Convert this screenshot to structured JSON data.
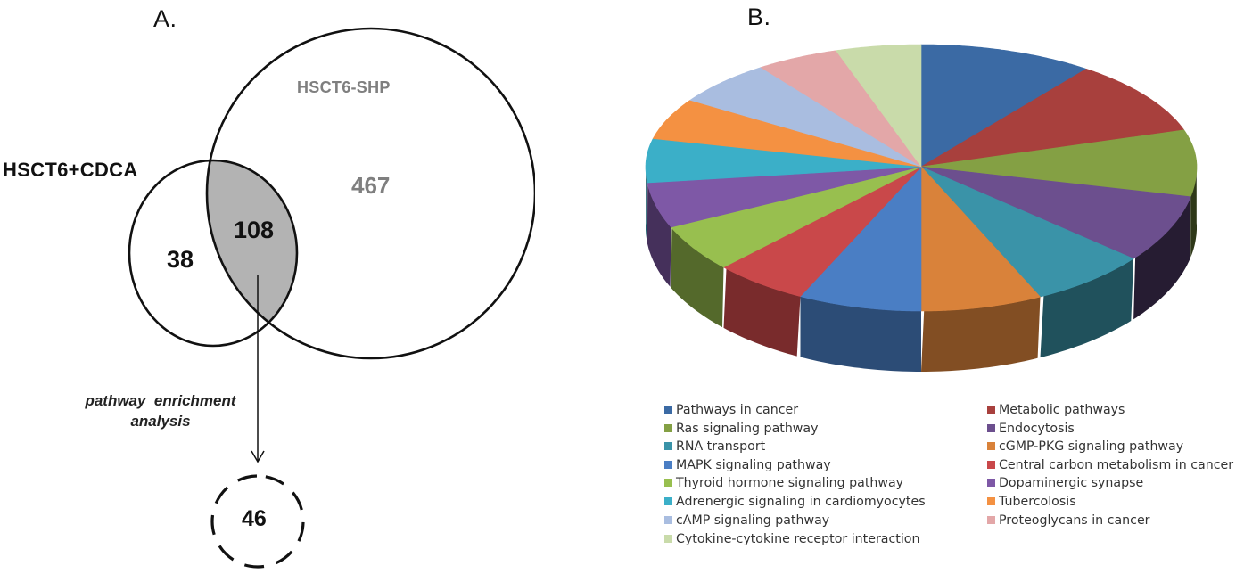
{
  "panel_a": {
    "label": "A.",
    "venn": {
      "set_left": {
        "name": "HSCT6+CDCA",
        "only_count": "38"
      },
      "set_right": {
        "name": "HSCT6-SHP",
        "only_count": "467"
      },
      "intersection_count": "108",
      "intersection_fill": "#b3b3b3"
    },
    "arrow_note": {
      "line1": "pathway  enrichment",
      "line2": "analysis"
    },
    "result_count": "46"
  },
  "panel_b": {
    "label": "B."
  },
  "chart_data": [
    {
      "type": "venn",
      "title": "A.",
      "sets": [
        "HSCT6+CDCA",
        "HSCT6-SHP"
      ],
      "regions": {
        "HSCT6+CDCA only": 38,
        "HSCT6+CDCA ∩ HSCT6-SHP": 108,
        "HSCT6-SHP only": 467
      },
      "annotation": "pathway enrichment analysis",
      "derived_result": 46
    },
    {
      "type": "pie",
      "style": "3d",
      "title": "B.",
      "legend_position": "bottom",
      "categories": [
        "Pathways in cancer",
        "Metabolic pathways",
        "Ras signaling pathway",
        "Endocytosis",
        "RNA transport",
        "cGMP-PKG signaling pathway",
        "MAPK signaling pathway",
        "Central carbon metabolism in cancer",
        "Thyroid hormone signaling pathway",
        "Dopaminergic synapse",
        "Adrenergic signaling in cardiomyocytes",
        "Tubercolosis",
        "cAMP signaling pathway",
        "Proteoglycans in cancer",
        "Cytokine-cytokine receptor interaction"
      ],
      "values": [
        36.8,
        35.7,
        29.5,
        27.6,
        24.8,
        25.6,
        26.0,
        19.8,
        19.4,
        18.4,
        19.7,
        19.7,
        21.4,
        17.6,
        18.0
      ],
      "value_unit": "approximate slice angle in degrees (read from image, no data labels shown)",
      "colors": [
        "#3b6aa4",
        "#a8403d",
        "#84a044",
        "#6c4f8e",
        "#3a93a8",
        "#d9823a",
        "#4a7ec4",
        "#c9484a",
        "#98bf4f",
        "#7e58a6",
        "#3bafc8",
        "#f49142",
        "#a9bde0",
        "#e3a7a8",
        "#c9dbaa"
      ]
    }
  ],
  "legend": {
    "left": [
      {
        "label": "Pathways in cancer",
        "color": "#3b6aa4"
      },
      {
        "label": "Ras signaling pathway",
        "color": "#84a044"
      },
      {
        "label": "RNA transport",
        "color": "#3a93a8"
      },
      {
        "label": "MAPK signaling pathway",
        "color": "#4a7ec4"
      },
      {
        "label": "Thyroid hormone signaling pathway",
        "color": "#98bf4f"
      },
      {
        "label": "Adrenergic signaling in cardiomyocytes",
        "color": "#3bafc8"
      },
      {
        "label": "cAMP signaling pathway",
        "color": "#a9bde0"
      },
      {
        "label": "Cytokine-cytokine receptor interaction",
        "color": "#c9dbaa"
      }
    ],
    "right": [
      {
        "label": "Metabolic pathways",
        "color": "#a8403d"
      },
      {
        "label": "Endocytosis",
        "color": "#6c4f8e"
      },
      {
        "label": "cGMP-PKG signaling pathway",
        "color": "#d9823a"
      },
      {
        "label": "Central carbon metabolism in cancer",
        "color": "#c9484a"
      },
      {
        "label": "Dopaminergic synapse",
        "color": "#7e58a6"
      },
      {
        "label": "Tubercolosis",
        "color": "#f49142"
      },
      {
        "label": "Proteoglycans in cancer",
        "color": "#e3a7a8"
      }
    ]
  }
}
